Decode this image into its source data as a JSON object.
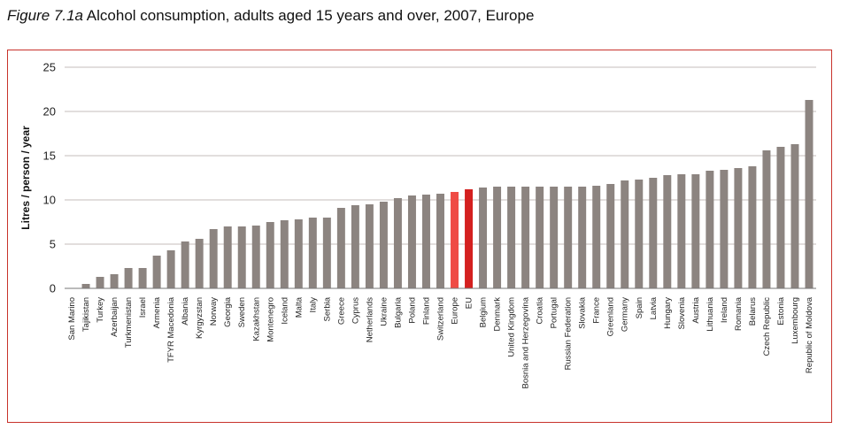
{
  "figure_label": "Figure 7.1a",
  "figure_title": "Alcohol consumption, adults aged 15 years and over, 2007, Europe",
  "colors": {
    "bar": "#8c8480",
    "highlight_europe": "#ef4b45",
    "highlight_eu": "#d4201f",
    "frame": "#c8322b",
    "grid": "#b0a8a4"
  },
  "chart_data": {
    "type": "bar",
    "title": "Alcohol consumption, adults aged 15 years and over, 2007, Europe",
    "xlabel": "",
    "ylabel": "Litres / person / year",
    "ylim": [
      0,
      25
    ],
    "yticks": [
      0,
      5,
      10,
      15,
      20,
      25
    ],
    "grid": true,
    "highlight": [
      "Europe",
      "EU"
    ],
    "categories": [
      "San Marino",
      "Tajikistan",
      "Turkey",
      "Azerbaijan",
      "Turkmenistan",
      "Israel",
      "Armenia",
      "TFYR Macedonia",
      "Albania",
      "Kyrgyzstan",
      "Norway",
      "Georgia",
      "Sweden",
      "Kazakhstan",
      "Montenegro",
      "Iceland",
      "Malta",
      "Italy",
      "Serbia",
      "Greece",
      "Cyprus",
      "Netherlands",
      "Ukraine",
      "Bulgaria",
      "Poland",
      "Finland",
      "Switzerland",
      "Europe",
      "EU",
      "Belgium",
      "Denmark",
      "United Kingdom",
      "Bosnia and Herzegovina",
      "Croatia",
      "Portugal",
      "Russian Federation",
      "Slovakia",
      "France",
      "Greenland",
      "Germany",
      "Spain",
      "Latvia",
      "Hungary",
      "Slovenia",
      "Austria",
      "Lithuania",
      "Ireland",
      "Romania",
      "Belarus",
      "Czech Republic",
      "Estonia",
      "Luxembourg",
      "Republic of Moldova"
    ],
    "values": [
      0.0,
      0.5,
      1.3,
      1.6,
      2.3,
      2.3,
      3.7,
      4.3,
      5.3,
      5.6,
      6.7,
      7.0,
      7.0,
      7.1,
      7.5,
      7.7,
      7.8,
      8.0,
      8.0,
      9.1,
      9.4,
      9.5,
      9.8,
      10.2,
      10.5,
      10.6,
      10.7,
      10.9,
      11.2,
      11.4,
      11.5,
      11.5,
      11.5,
      11.5,
      11.5,
      11.5,
      11.5,
      11.6,
      11.8,
      12.2,
      12.3,
      12.5,
      12.8,
      12.9,
      12.9,
      13.3,
      13.4,
      13.6,
      13.8,
      15.6,
      16.0,
      16.3,
      21.3
    ]
  }
}
